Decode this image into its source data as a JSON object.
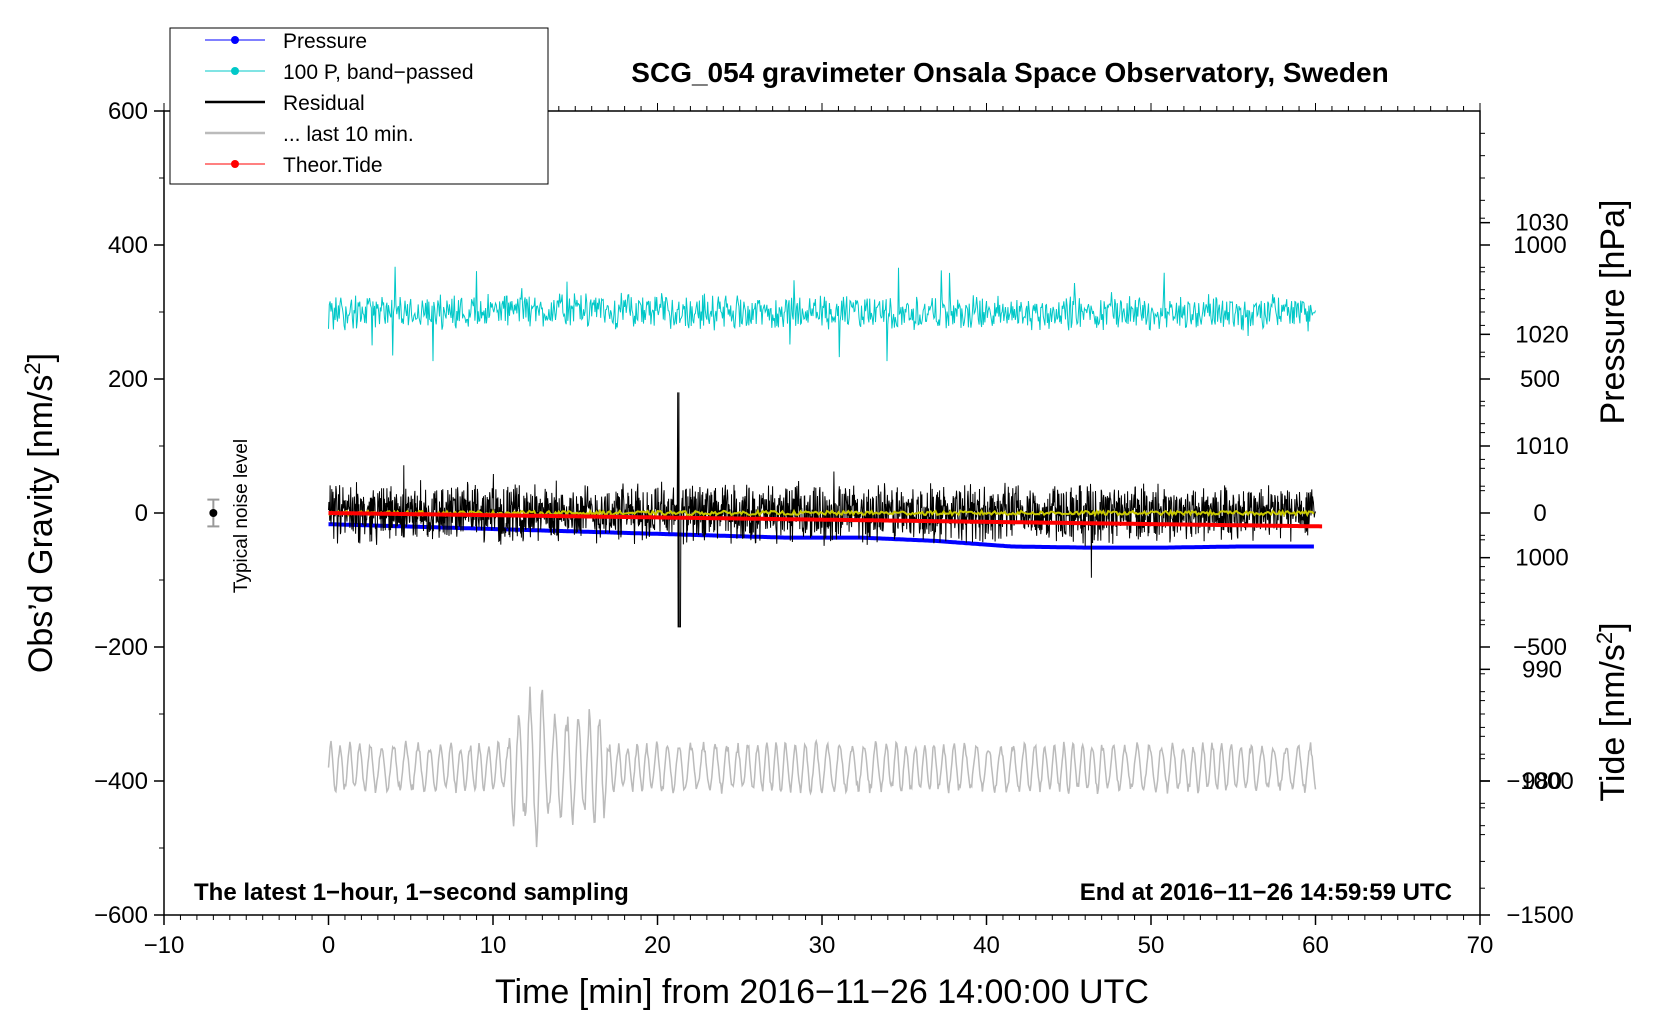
{
  "chart_data": {
    "type": "line",
    "title": "SCG_054 gravimeter Onsala Space Observatory, Sweden",
    "xlabel": "Time [min] from 2016−11−26 14:00:00 UTC",
    "ylabel_left_main": "Obs’d Gravity [nm/s",
    "ylabel_left_sup": "2",
    "ylabel_left_end": "]",
    "ylabel_right_pressure": "Pressure [hPa]",
    "ylabel_right_tide_main": "Tide [nm/s",
    "ylabel_right_tide_sup": "2",
    "ylabel_right_tide_end": "]",
    "xlim": [
      -10,
      70
    ],
    "ylim": [
      -600,
      600
    ],
    "pressure_lim": [
      968,
      1040
    ],
    "tide_lim": [
      -1500,
      1500
    ],
    "x_ticks": [
      -10,
      0,
      10,
      20,
      30,
      40,
      50,
      60,
      70
    ],
    "x_tick_labels": [
      "−10",
      "0",
      "10",
      "20",
      "30",
      "40",
      "50",
      "60",
      "70"
    ],
    "y_ticks": [
      -600,
      -400,
      -200,
      0,
      200,
      400,
      600
    ],
    "y_tick_labels": [
      "−600",
      "−400",
      "−200",
      "0",
      "200",
      "400",
      "600"
    ],
    "pressure_ticks": [
      980,
      990,
      1000,
      1010,
      1020,
      1030
    ],
    "pressure_tick_labels": [
      "980",
      "990",
      "1000",
      "1010",
      "1020",
      "1030"
    ],
    "tide_ticks": [
      -1500,
      -1000,
      -500,
      0,
      500,
      1000
    ],
    "tide_tick_labels": [
      "−1500",
      "−1000",
      "−500",
      "0",
      "500",
      "1000"
    ],
    "annotation_left": "The latest 1−hour, 1−second sampling",
    "annotation_right": "End at 2016−11−26 14:59:59 UTC",
    "noise_label": "Typical noise level",
    "noise_marker": {
      "x": -7,
      "y": 0,
      "err": 20
    },
    "legend": [
      {
        "name": "Pressure",
        "color": "#0000ff",
        "marker": true
      },
      {
        "name": "100 P, band−passed",
        "color": "#00c8c8",
        "marker": true
      },
      {
        "name": "Residual",
        "color": "#000000",
        "marker": false
      },
      {
        "name": "... last 10 min.",
        "color": "#bbbbbb",
        "marker": false
      },
      {
        "name": "Theor.Tide",
        "color": "#ff0000",
        "marker": true
      }
    ],
    "series": [
      {
        "name": "Pressure",
        "axis": "pressure",
        "color": "#0000ff",
        "x_range": [
          0,
          60
        ],
        "values": [
          1003.0,
          1002.8,
          1002.6,
          1002.4,
          1002.2,
          1002.0,
          1001.8,
          1001.8,
          1001.5,
          1001.0,
          1000.9,
          1000.9,
          1001.0,
          1001.0
        ]
      },
      {
        "name": "100 P, band−passed",
        "axis": "gravity",
        "color": "#00c8c8",
        "x_range": [
          0,
          60
        ],
        "center": 300,
        "amplitude": 30
      },
      {
        "name": "Residual",
        "axis": "gravity",
        "color": "#000000",
        "x_range": [
          0,
          60
        ],
        "center": 0,
        "amplitude": 50
      },
      {
        "name": "... last 10 min.",
        "axis": "gravity",
        "color": "#bbbbbb",
        "x_range": [
          0,
          60
        ],
        "center": -380,
        "amplitude": 40
      },
      {
        "name": "Theor.Tide",
        "axis": "tide",
        "color": "#ff0000",
        "x_range": [
          0,
          60.5
        ],
        "values": [
          0,
          -5,
          -10,
          -15,
          -20,
          -25,
          -30,
          -35,
          -40,
          -45,
          -50
        ]
      },
      {
        "name": "Residual smoothed",
        "axis": "gravity",
        "color": "#c8c800",
        "x_range": [
          0,
          60
        ],
        "center": 0,
        "amplitude": 3
      }
    ]
  }
}
